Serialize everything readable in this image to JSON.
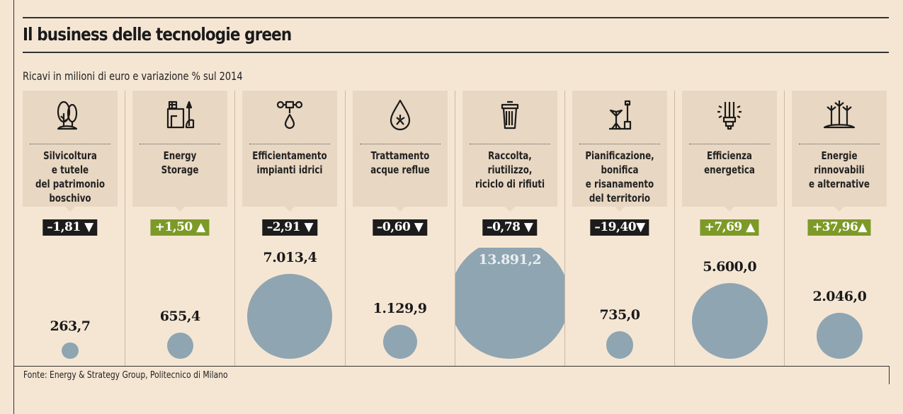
{
  "title": "Il business delle tecnologie green",
  "subtitle": "Ricavi in milioni di euro e variazione % sul 2014",
  "source": "Fonte: Energy & Strategy Group, Politecnico di Milano",
  "colors": {
    "background": "#f5e6d4",
    "card": "#e8d7c2",
    "bubble": "#8fa5b1",
    "positive": "#7d9a28",
    "negative": "#1c1c1c"
  },
  "chart_data": {
    "type": "bubble",
    "title": "Il business delle tecnologie green",
    "subtitle": "Ricavi in milioni di euro e variazione % sul 2014",
    "categories": [
      {
        "label": "Silvicoltura\ne tutele\ndel patrimonio\nboschivo",
        "icon": "trees-icon",
        "value": 263.7,
        "value_label": "263,7",
        "change": -1.81,
        "change_label": "–1,81 ▼"
      },
      {
        "label": "Energy\nStorage",
        "icon": "house-solar-icon",
        "value": 655.4,
        "value_label": "655,4",
        "change": 1.5,
        "change_label": "+1,50 ▲"
      },
      {
        "label": "Efficientamento\nimpianti idrici",
        "icon": "water-valve-icon",
        "value": 7013.4,
        "value_label": "7.013,4",
        "change": -2.91,
        "change_label": "–2,91 ▼"
      },
      {
        "label": "Trattamento\nacque reflue",
        "icon": "water-drop-icon",
        "value": 1129.9,
        "value_label": "1.129,9",
        "change": -0.6,
        "change_label": "–0,60 ▼"
      },
      {
        "label": "Raccolta,\nriutilizzo,\nriciclo di rifiuti",
        "icon": "trash-bin-icon",
        "value": 13891.2,
        "value_label": "13.891,2",
        "change": -0.78,
        "change_label": "–0,78 ▼"
      },
      {
        "label": "Pianificazione,\nbonifica\ne risanamento\ndel territorio",
        "icon": "plant-shovel-icon",
        "value": 735.0,
        "value_label": "735,0",
        "change": -19.4,
        "change_label": "–19,40▼"
      },
      {
        "label": "Efficienza\nenergetica",
        "icon": "bulb-icon",
        "value": 5600.0,
        "value_label": "5.600,0",
        "change": 7.69,
        "change_label": "+7,69 ▲"
      },
      {
        "label": "Energie\nrinnovabili\ne alternative",
        "icon": "wind-turbines-icon",
        "value": 2046.0,
        "value_label": "2.046,0",
        "change": 37.96,
        "change_label": "+37,96▲"
      }
    ]
  }
}
